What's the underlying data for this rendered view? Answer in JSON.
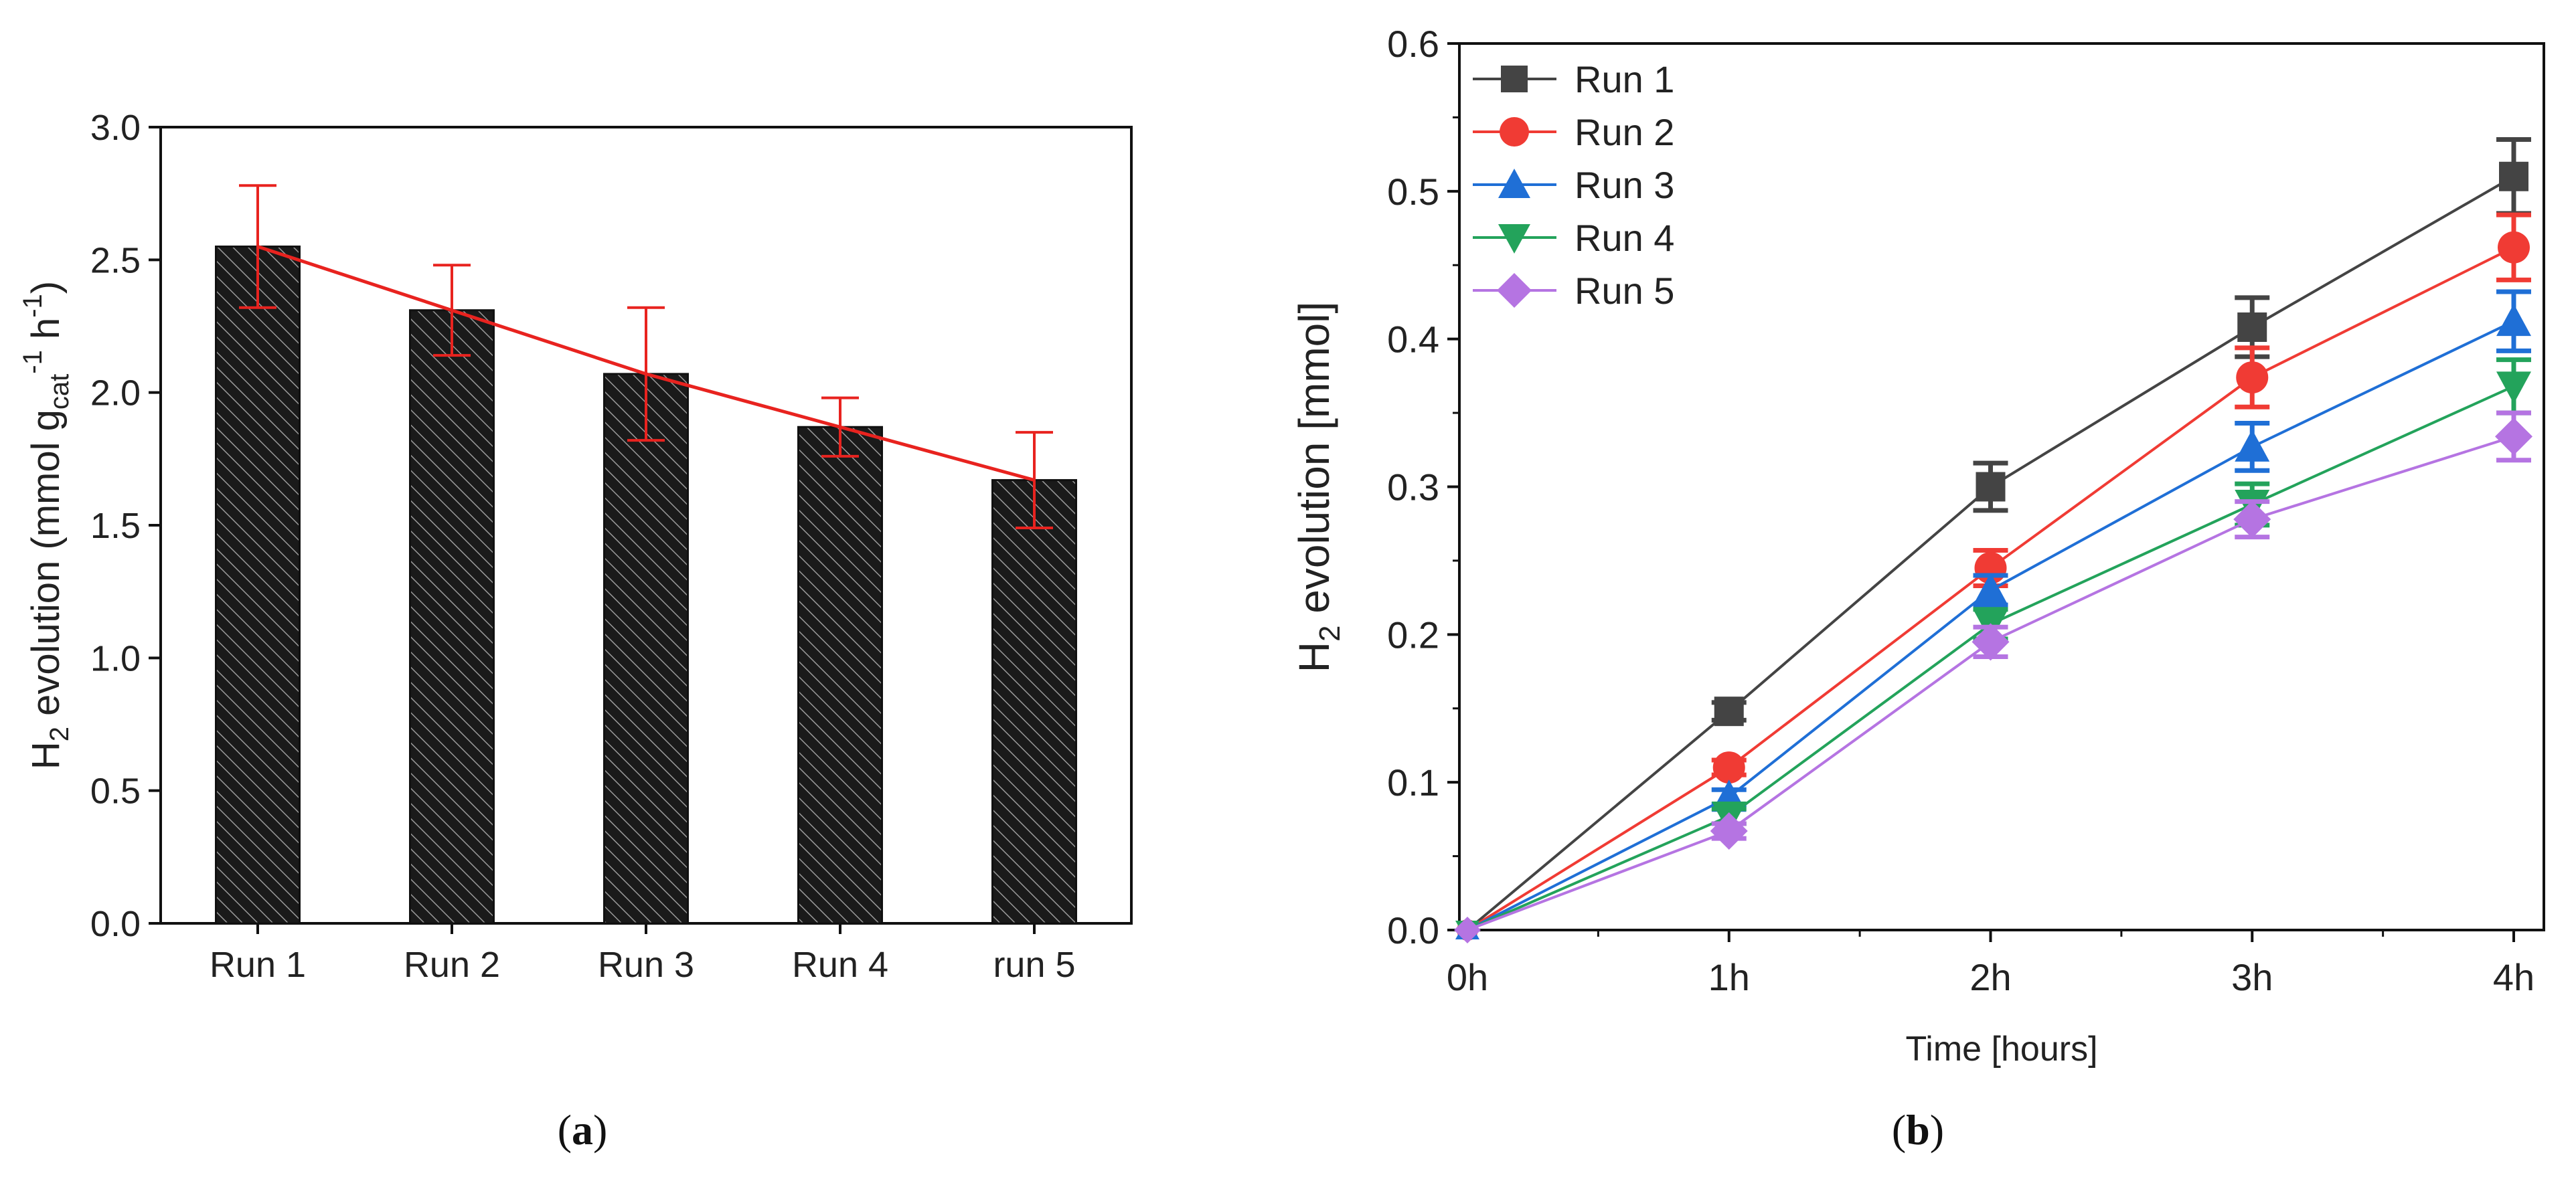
{
  "panel_a": {
    "caption_letter": "a",
    "chart_data": {
      "type": "bar",
      "categories": [
        "Run 1",
        "Run 2",
        "Run 3",
        "Run 4",
        "run 5"
      ],
      "values": [
        2.55,
        2.31,
        2.07,
        1.87,
        1.67
      ],
      "errors": [
        0.23,
        0.17,
        0.25,
        0.11,
        0.18
      ],
      "trend_line": [
        2.55,
        2.31,
        2.07,
        1.87,
        1.67
      ],
      "ylabel_parts": {
        "main": "H",
        "sub1": "2",
        "text1": " evolution (mmol g",
        "sub2": "cat",
        "sup1": "-1",
        "text2": " h",
        "sup2": "-1",
        "text3": ")"
      },
      "ylim": [
        0,
        3.0
      ],
      "yticks": [
        "0.0",
        "0.5",
        "1.0",
        "1.5",
        "2.0",
        "2.5",
        "3.0"
      ],
      "ytick_values": [
        0,
        0.5,
        1.0,
        1.5,
        2.0,
        2.5,
        3.0
      ],
      "bar_fill": "#1a1a1a",
      "hatch_color": "#9a9a9a",
      "error_color": "#e8231f",
      "trend_color": "#e8231f"
    }
  },
  "panel_b": {
    "caption_letter": "b",
    "chart_data": {
      "type": "line",
      "x_categories": [
        "0h",
        "1h",
        "2h",
        "3h",
        "4h"
      ],
      "x": [
        0,
        1,
        2,
        3,
        4
      ],
      "xlabel": "Time [hours]",
      "ylabel_parts": {
        "main": "H",
        "sub1": "2",
        "text1": " evolution [mmol]"
      },
      "ylim": [
        0,
        0.6
      ],
      "yticks": [
        "0.0",
        "0.1",
        "0.2",
        "0.3",
        "0.4",
        "0.5",
        "0.6"
      ],
      "ytick_values": [
        0,
        0.1,
        0.2,
        0.3,
        0.4,
        0.5,
        0.6
      ],
      "legend_position": "top-left",
      "series": [
        {
          "name": "Run 1",
          "marker": "square",
          "color": "#444444",
          "values": [
            0,
            0.148,
            0.3,
            0.408,
            0.51
          ],
          "errors": [
            0,
            0.006,
            0.016,
            0.02,
            0.025
          ]
        },
        {
          "name": "Run 2",
          "marker": "circle",
          "color": "#f03b34",
          "values": [
            0,
            0.11,
            0.245,
            0.374,
            0.462
          ],
          "errors": [
            0,
            0.005,
            0.012,
            0.02,
            0.022
          ]
        },
        {
          "name": "Run 3",
          "marker": "triangle-up",
          "color": "#1f6fd6",
          "values": [
            0,
            0.09,
            0.23,
            0.327,
            0.412
          ],
          "errors": [
            0,
            0.005,
            0.01,
            0.016,
            0.02
          ]
        },
        {
          "name": "Run 4",
          "marker": "triangle-down",
          "color": "#23a35b",
          "values": [
            0,
            0.077,
            0.207,
            0.288,
            0.368
          ],
          "errors": [
            0,
            0.005,
            0.01,
            0.014,
            0.018
          ]
        },
        {
          "name": "Run 5",
          "marker": "diamond",
          "color": "#b574e2",
          "values": [
            0,
            0.067,
            0.195,
            0.278,
            0.334
          ],
          "errors": [
            0,
            0.005,
            0.01,
            0.012,
            0.016
          ]
        }
      ]
    }
  }
}
